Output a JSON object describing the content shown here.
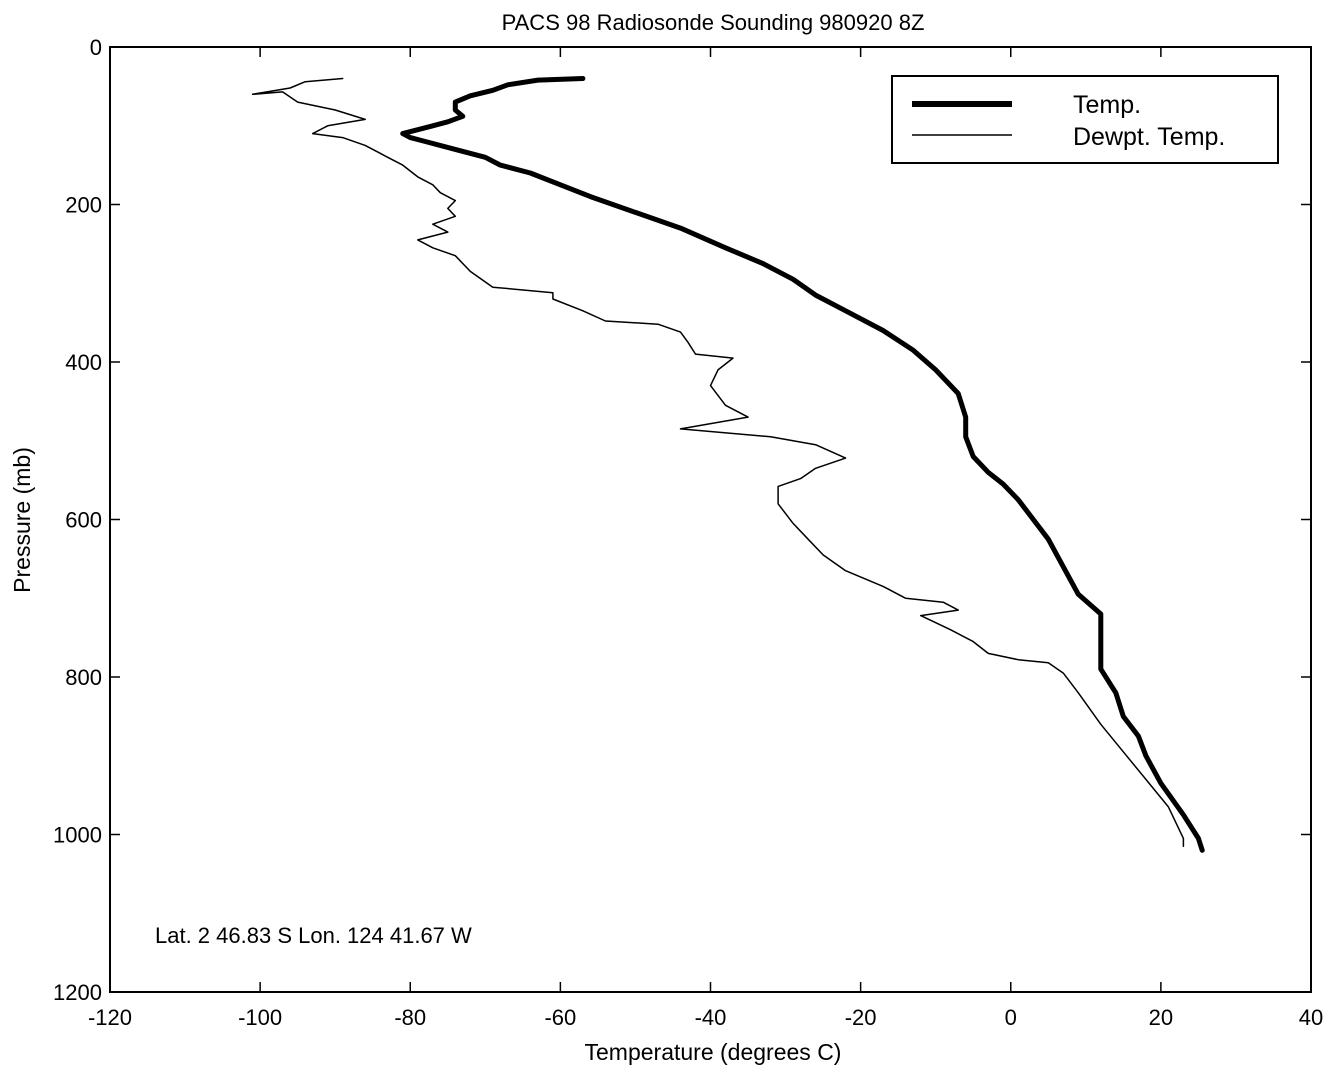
{
  "chart_data": {
    "type": "line",
    "title": "PACS 98 Radiosonde Sounding 980920 8Z",
    "xlabel": "Temperature (degrees C)",
    "ylabel": "Pressure (mb)",
    "xlim": [
      -120,
      40
    ],
    "ylim": [
      0,
      1200
    ],
    "y_inverted": true,
    "grid": false,
    "legend_position": "top-right",
    "xticks": [
      "-120",
      "-100",
      "-80",
      "-60",
      "-40",
      "-20",
      "0",
      "20",
      "40"
    ],
    "yticks": [
      "0",
      "200",
      "400",
      "600",
      "800",
      "1000",
      "1200"
    ],
    "annotation": "Lat. 2 46.83 S  Lon. 124 41.67 W",
    "series": [
      {
        "name": "Temp.",
        "line_style": "thick",
        "color": "#000000",
        "points": [
          [
            -57,
            40
          ],
          [
            -63,
            42
          ],
          [
            -67,
            48
          ],
          [
            -69,
            55
          ],
          [
            -72,
            62
          ],
          [
            -74,
            70
          ],
          [
            -74,
            80
          ],
          [
            -73,
            88
          ],
          [
            -75,
            95
          ],
          [
            -77,
            100
          ],
          [
            -79,
            105
          ],
          [
            -81,
            110
          ],
          [
            -80,
            115
          ],
          [
            -78,
            120
          ],
          [
            -74,
            130
          ],
          [
            -70,
            140
          ],
          [
            -68,
            150
          ],
          [
            -64,
            160
          ],
          [
            -60,
            175
          ],
          [
            -56,
            190
          ],
          [
            -50,
            210
          ],
          [
            -44,
            230
          ],
          [
            -38,
            255
          ],
          [
            -33,
            275
          ],
          [
            -29,
            295
          ],
          [
            -26,
            315
          ],
          [
            -22,
            335
          ],
          [
            -17,
            360
          ],
          [
            -13,
            385
          ],
          [
            -10,
            410
          ],
          [
            -7,
            440
          ],
          [
            -6,
            470
          ],
          [
            -6,
            495
          ],
          [
            -5,
            520
          ],
          [
            -3,
            540
          ],
          [
            -1,
            555
          ],
          [
            1,
            575
          ],
          [
            3,
            600
          ],
          [
            5,
            625
          ],
          [
            7,
            660
          ],
          [
            9,
            695
          ],
          [
            12,
            720
          ],
          [
            12,
            760
          ],
          [
            12,
            790
          ],
          [
            14,
            820
          ],
          [
            15,
            850
          ],
          [
            17,
            875
          ],
          [
            18,
            900
          ],
          [
            20,
            935
          ],
          [
            23,
            975
          ],
          [
            25,
            1005
          ],
          [
            25.5,
            1020
          ]
        ]
      },
      {
        "name": "Dewpt. Temp.",
        "line_style": "thin",
        "color": "#000000",
        "points": [
          [
            -89,
            40
          ],
          [
            -94,
            44
          ],
          [
            -96,
            52
          ],
          [
            -101,
            60
          ],
          [
            -97,
            57
          ],
          [
            -95,
            70
          ],
          [
            -90,
            80
          ],
          [
            -86,
            92
          ],
          [
            -91,
            100
          ],
          [
            -93,
            110
          ],
          [
            -89,
            115
          ],
          [
            -86,
            125
          ],
          [
            -83,
            140
          ],
          [
            -81,
            150
          ],
          [
            -79,
            165
          ],
          [
            -77,
            175
          ],
          [
            -76,
            185
          ],
          [
            -74,
            195
          ],
          [
            -75,
            205
          ],
          [
            -74,
            215
          ],
          [
            -77,
            225
          ],
          [
            -75,
            235
          ],
          [
            -79,
            245
          ],
          [
            -77,
            255
          ],
          [
            -74,
            265
          ],
          [
            -72,
            285
          ],
          [
            -69,
            305
          ],
          [
            -61,
            312
          ],
          [
            -61,
            320
          ],
          [
            -57,
            335
          ],
          [
            -54,
            348
          ],
          [
            -47,
            352
          ],
          [
            -44,
            362
          ],
          [
            -43,
            375
          ],
          [
            -42,
            390
          ],
          [
            -37,
            395
          ],
          [
            -39,
            410
          ],
          [
            -40,
            430
          ],
          [
            -38,
            455
          ],
          [
            -35,
            470
          ],
          [
            -44,
            485
          ],
          [
            -32,
            495
          ],
          [
            -26,
            505
          ],
          [
            -22,
            522
          ],
          [
            -26,
            535
          ],
          [
            -28,
            548
          ],
          [
            -31,
            558
          ],
          [
            -31,
            580
          ],
          [
            -29,
            605
          ],
          [
            -27,
            625
          ],
          [
            -25,
            645
          ],
          [
            -22,
            665
          ],
          [
            -17,
            685
          ],
          [
            -14,
            700
          ],
          [
            -9,
            705
          ],
          [
            -7,
            715
          ],
          [
            -12,
            722
          ],
          [
            -8,
            740
          ],
          [
            -5,
            755
          ],
          [
            -3,
            770
          ],
          [
            1,
            778
          ],
          [
            5,
            782
          ],
          [
            7,
            795
          ],
          [
            9,
            820
          ],
          [
            12,
            860
          ],
          [
            15,
            895
          ],
          [
            18,
            930
          ],
          [
            21,
            965
          ],
          [
            23,
            1005
          ],
          [
            23,
            1015
          ]
        ]
      }
    ]
  }
}
